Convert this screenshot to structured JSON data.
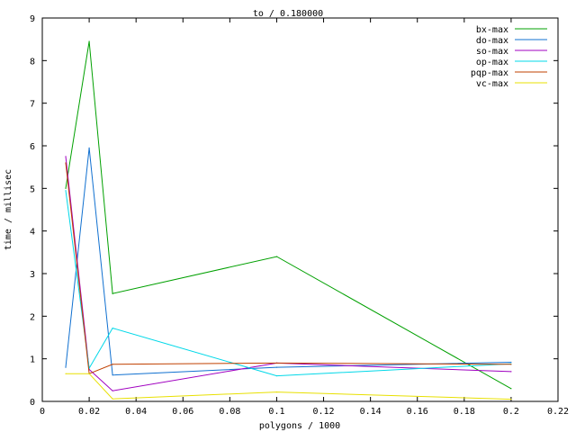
{
  "chart_data": {
    "type": "line",
    "title": "to / 0.180000",
    "xlabel": "polygons / 1000",
    "ylabel": "time / millisec",
    "xlim": [
      0,
      0.22
    ],
    "ylim": [
      0,
      9
    ],
    "xticks": [
      "0",
      "0.02",
      "0.04",
      "0.06",
      "0.08",
      "0.1",
      "0.12",
      "0.14",
      "0.16",
      "0.18",
      "0.2",
      "0.22"
    ],
    "yticks": [
      "0",
      "1",
      "2",
      "3",
      "4",
      "5",
      "6",
      "7",
      "8",
      "9"
    ],
    "grid": false,
    "legend_position": "top-right",
    "x": [
      0.01,
      0.02,
      0.03,
      0.1,
      0.2
    ],
    "series": [
      {
        "name": "bx-max",
        "color": "#00a000",
        "values": [
          5.0,
          8.45,
          2.53,
          3.4,
          0.3
        ]
      },
      {
        "name": "do-max",
        "color": "#1070d0",
        "values": [
          0.8,
          5.95,
          0.62,
          0.8,
          0.92
        ]
      },
      {
        "name": "so-max",
        "color": "#a000c0",
        "values": [
          5.75,
          0.75,
          0.25,
          0.9,
          0.7
        ]
      },
      {
        "name": "op-max",
        "color": "#00d8e8",
        "values": [
          4.95,
          0.78,
          1.72,
          0.6,
          0.88
        ]
      },
      {
        "name": "pqp-max",
        "color": "#c04000",
        "values": [
          5.6,
          0.65,
          0.87,
          0.9,
          0.87
        ]
      },
      {
        "name": "vc-max",
        "color": "#e8e000",
        "values": [
          0.65,
          0.65,
          0.06,
          0.22,
          0.05
        ]
      }
    ]
  }
}
